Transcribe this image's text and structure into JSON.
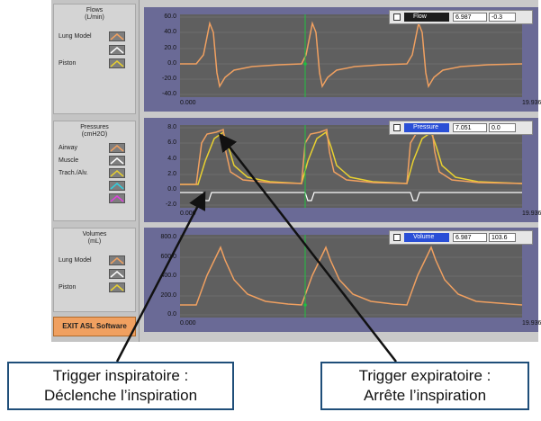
{
  "legend": {
    "flows": {
      "title": "Flows",
      "unit": "(L/min)",
      "items": [
        "Lung Model",
        "",
        "Piston"
      ]
    },
    "pressures": {
      "title": "Pressures",
      "unit": "(cmH2O)",
      "items": [
        "Airway",
        "Muscle",
        "Trach./Alv.",
        "",
        ""
      ]
    },
    "volumes": {
      "title": "Volumes",
      "unit": "(mL)",
      "items": [
        "Lung Model",
        "",
        "Piston"
      ]
    }
  },
  "exit_button": "EXIT ASL Software",
  "charts": {
    "flow": {
      "y_ticks": [
        "60.0",
        "40.0",
        "20.0",
        "0.0",
        "-20.0",
        "-40.0"
      ],
      "x_start": "0.000",
      "x_end": "19.936",
      "readout": {
        "name": "Flow",
        "value1": "6.987",
        "value2": "-0.3"
      }
    },
    "pressure": {
      "y_ticks": [
        "8.0",
        "6.0",
        "4.0",
        "2.0",
        "0.0",
        "-2.0"
      ],
      "x_start": "0.000",
      "x_end": "19.936",
      "readout": {
        "name": "Pressure",
        "value1": "7.051",
        "value2": "0.0"
      }
    },
    "volume": {
      "y_ticks": [
        "800.0",
        "600.0",
        "400.0",
        "200.0",
        "0.0"
      ],
      "x_start": "0.000",
      "x_end": "19.936",
      "readout": {
        "name": "Volume",
        "value1": "6.987",
        "value2": "103.6"
      }
    }
  },
  "callouts": {
    "inspiratory": {
      "line1": "Trigger inspiratoire :",
      "line2": "Déclenche l’inspiration"
    },
    "expiratory": {
      "line1": "Trigger expiratoire :",
      "line2": "Arrête l’inspiration"
    }
  },
  "colors": {
    "orange": "#f0a060",
    "yellow": "#e8d030",
    "white": "#ffffff",
    "cursor": "#20c040",
    "panel": "#6a6a96"
  }
}
